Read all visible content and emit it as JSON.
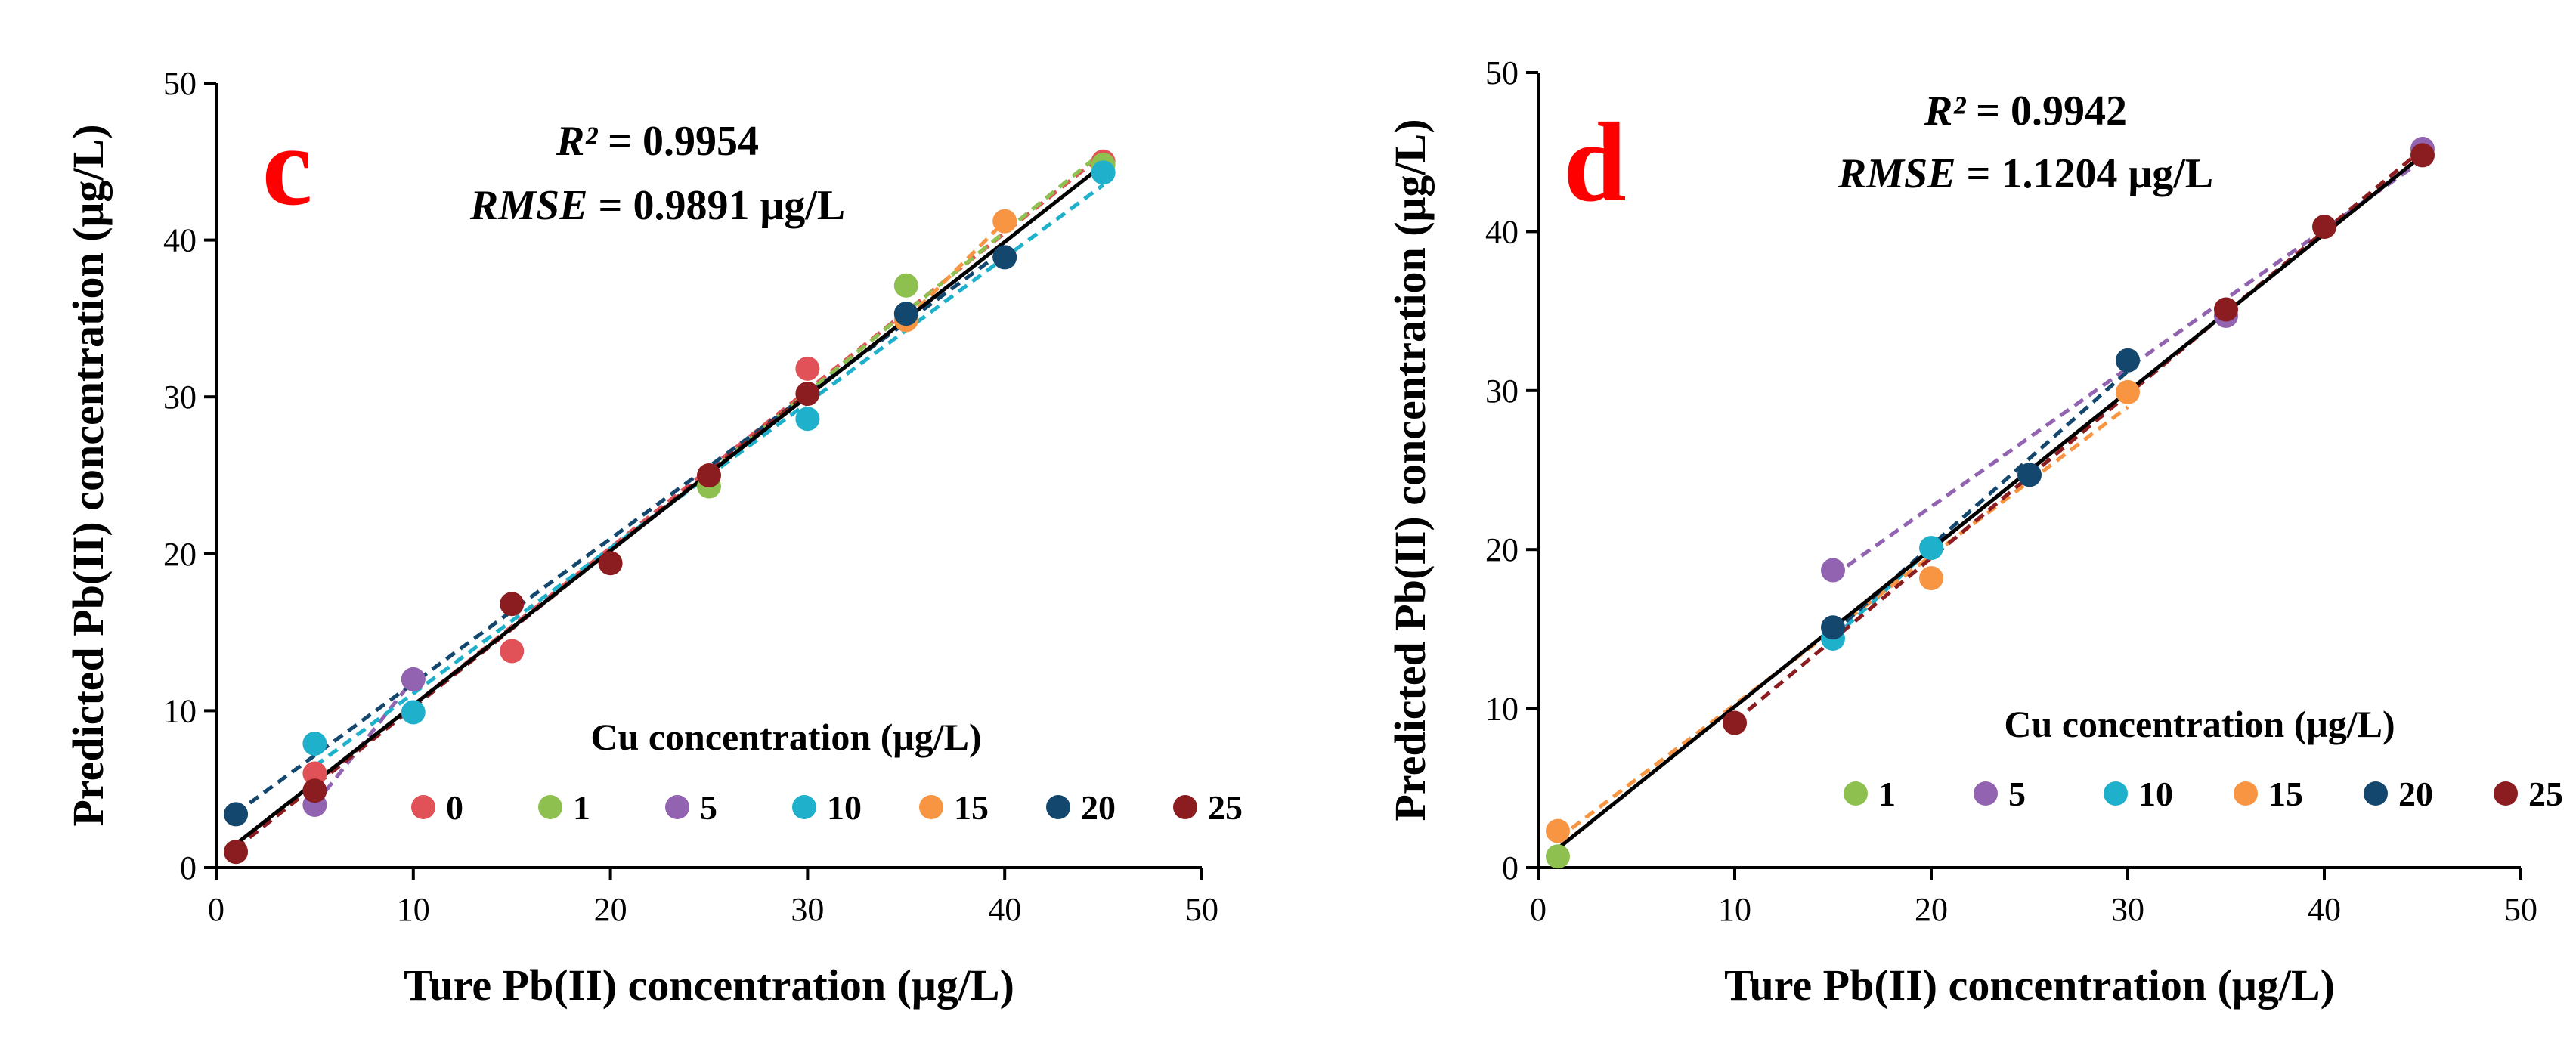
{
  "colors": {
    "0": "#e05257",
    "1": "#8dc04e",
    "5": "#9163b0",
    "10": "#1fb1cc",
    "15": "#f89542",
    "20": "#13476e",
    "25": "#8b1c20",
    "ideal": "#000000",
    "letter": "#ff0000"
  },
  "chart_data": [
    {
      "type": "scatter",
      "panel": "c",
      "r2_label": "R²",
      "r2_value": "= 0.9954",
      "rmse_label": "RMSE",
      "rmse_value": "= 0.9891 μg/L",
      "xlabel": "Ture Pb(II) concentration (μg/L)",
      "ylabel": "Predicted Pb(II) concentration (μg/L)",
      "xlim": [
        0,
        50
      ],
      "ylim": [
        0,
        50
      ],
      "xticks": [
        "0",
        "10",
        "20",
        "30",
        "40",
        "50"
      ],
      "yticks": [
        "0",
        "10",
        "20",
        "30",
        "40",
        "50"
      ],
      "legend_title": "Cu concentration (μg/L)",
      "ideal_line": [
        [
          1,
          1.5
        ],
        [
          45,
          44.8
        ]
      ],
      "series": [
        {
          "name": "0",
          "x": [
            5,
            15,
            30,
            45
          ],
          "y": [
            6.0,
            13.8,
            31.8,
            45.0
          ]
        },
        {
          "name": "1",
          "x": [
            25,
            35,
            45
          ],
          "y": [
            24.3,
            37.1,
            44.8
          ]
        },
        {
          "name": "5",
          "x": [
            5,
            10
          ],
          "y": [
            4.0,
            12.0
          ]
        },
        {
          "name": "10",
          "x": [
            5,
            10,
            30,
            45
          ],
          "y": [
            7.9,
            9.9,
            28.6,
            44.3
          ]
        },
        {
          "name": "15",
          "x": [
            35,
            40
          ],
          "y": [
            34.9,
            41.2
          ]
        },
        {
          "name": "20",
          "x": [
            1,
            35,
            40
          ],
          "y": [
            3.4,
            35.3,
            38.9
          ]
        },
        {
          "name": "25",
          "x": [
            1,
            5,
            15,
            20,
            25,
            30
          ],
          "y": [
            1.0,
            4.9,
            16.8,
            19.4,
            25.0,
            30.2
          ]
        }
      ]
    },
    {
      "type": "scatter",
      "panel": "d",
      "r2_label": "R²",
      "r2_value": "= 0.9942",
      "rmse_label": "RMSE",
      "rmse_value": "= 1.1204 μg/L",
      "xlabel": "Ture Pb(II) concentration (μg/L)",
      "ylabel": "Predicted Pb(II) concentration (μg/L)",
      "xlim": [
        0,
        50
      ],
      "ylim": [
        0,
        50
      ],
      "xticks": [
        "0",
        "10",
        "20",
        "30",
        "40",
        "50"
      ],
      "yticks": [
        "0",
        "10",
        "20",
        "30",
        "40",
        "50"
      ],
      "legend_title": "Cu concentration (μg/L)",
      "ideal_line": [
        [
          1,
          1.2
        ],
        [
          45,
          44.8
        ]
      ],
      "series": [
        {
          "name": "1",
          "x": [
            1
          ],
          "y": [
            0.7
          ]
        },
        {
          "name": "5",
          "x": [
            15,
            35,
            45
          ],
          "y": [
            18.7,
            34.7,
            45.2
          ]
        },
        {
          "name": "10",
          "x": [
            15,
            20
          ],
          "y": [
            14.4,
            20.1
          ]
        },
        {
          "name": "15",
          "x": [
            1,
            20,
            30
          ],
          "y": [
            2.3,
            18.2,
            29.9
          ]
        },
        {
          "name": "20",
          "x": [
            15,
            25,
            30
          ],
          "y": [
            15.1,
            24.7,
            31.9
          ]
        },
        {
          "name": "25",
          "x": [
            10,
            35,
            40,
            45
          ],
          "y": [
            9.1,
            35.1,
            40.3,
            44.8
          ]
        }
      ]
    }
  ]
}
